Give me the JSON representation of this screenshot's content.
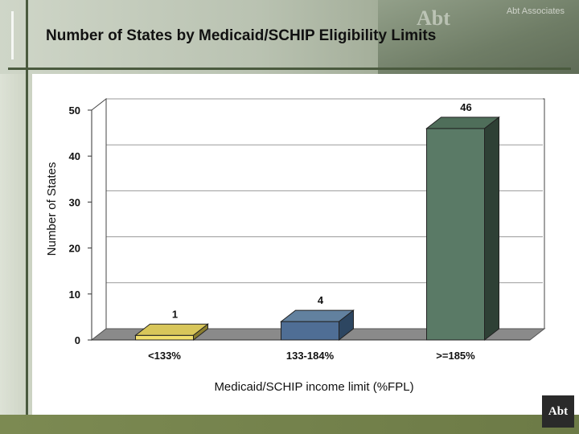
{
  "header": {
    "title": "Number of States by Medicaid/SCHIP Eligibility Limits",
    "company": "Abt Associates",
    "book_mark": "Abt"
  },
  "footer": {
    "logo_text": "Abt"
  },
  "colors": {
    "bar_fill": [
      "#f1df6e",
      "#4f6e95",
      "#5a7a66"
    ],
    "bar_top": [
      "#d8c65a",
      "#62819f",
      "#4f6e5a"
    ],
    "bar_side": [
      "#8a7d2e",
      "#2d4661",
      "#2e4035"
    ],
    "floor": "#8a8a8a"
  },
  "chart_data": {
    "type": "bar",
    "categories": [
      "<133%",
      "133-184%",
      ">=185%"
    ],
    "values": [
      1,
      4,
      46
    ],
    "title": "",
    "xlabel": "Medicaid/SCHIP income limit (%FPL)",
    "ylabel": "Number of States",
    "ylim": [
      0,
      50
    ],
    "yticks": [
      0,
      10,
      20,
      30,
      40,
      50
    ],
    "data_labels": [
      "1",
      "4",
      "46"
    ],
    "grid": true,
    "legend": "none",
    "style": "3d-column"
  }
}
